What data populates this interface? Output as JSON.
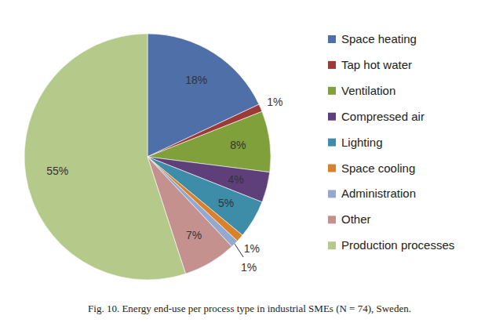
{
  "chart_data": {
    "type": "pie",
    "title": "Fig. 10. Energy end-use per process type in industrial SMEs (N = 74), Sweden.",
    "categories": [
      "Space heating",
      "Tap hot water",
      "Ventilation",
      "Compressed air",
      "Lighting",
      "Space cooling",
      "Administration",
      "Other",
      "Production processes"
    ],
    "values": [
      18,
      1,
      8,
      4,
      5,
      1,
      1,
      7,
      55
    ],
    "value_labels": [
      "18%",
      "1%",
      "8%",
      "4%",
      "5%",
      "1%",
      "1%",
      "7%",
      "55%"
    ],
    "colors": [
      "#4f6fa8",
      "#9b3a37",
      "#7fa03a",
      "#5e3f7a",
      "#3d8ca8",
      "#d9822b",
      "#93a9cf",
      "#c4918f",
      "#b5c98a"
    ],
    "data_labels": true,
    "legend": "right"
  }
}
